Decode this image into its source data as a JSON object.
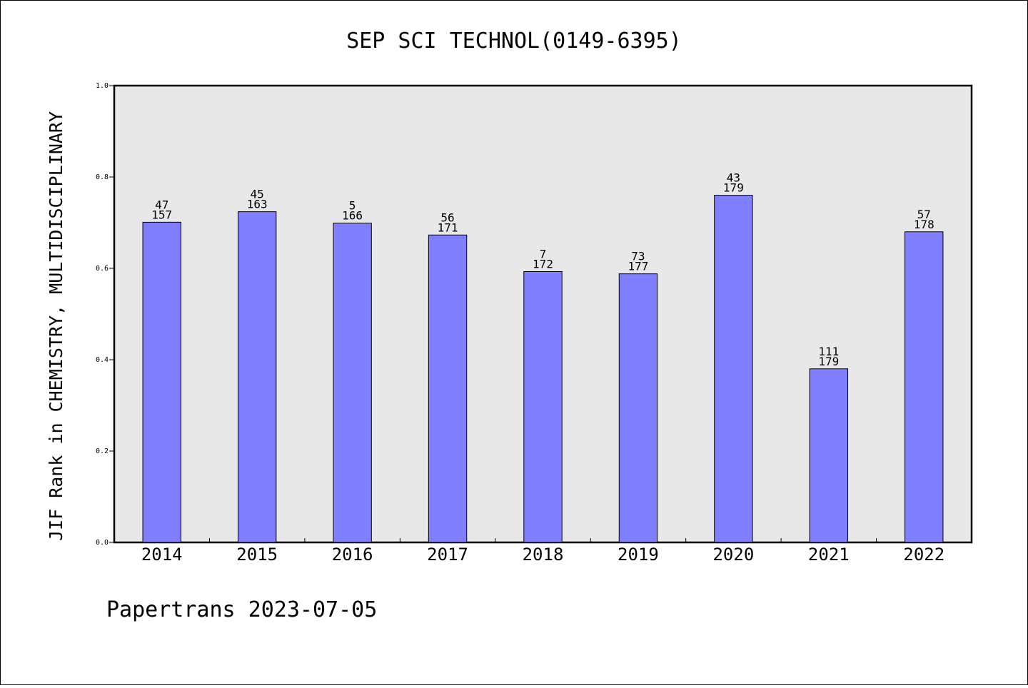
{
  "chart_data": {
    "type": "bar",
    "title": "SEP SCI TECHNOL(0149-6395)",
    "xlabel": "",
    "ylabel": "JIF Rank in CHEMISTRY, MULTIDISCIPLINARY",
    "ylim": [
      0,
      1.0
    ],
    "yticks": [
      "0.0",
      "0.2",
      "0.4",
      "0.6",
      "0.8",
      "1.0"
    ],
    "grid": false,
    "categories": [
      "2014",
      "2015",
      "2016",
      "2017",
      "2018",
      "2019",
      "2020",
      "2021",
      "2022"
    ],
    "values": [
      0.701,
      0.724,
      0.699,
      0.673,
      0.593,
      0.588,
      0.76,
      0.38,
      0.68
    ],
    "labels": [
      {
        "rank": "47",
        "total": "157"
      },
      {
        "rank": "45",
        "total": "163"
      },
      {
        "rank": "5",
        "total": "166"
      },
      {
        "rank": "56",
        "total": "171"
      },
      {
        "rank": "7",
        "total": "172"
      },
      {
        "rank": "73",
        "total": "177"
      },
      {
        "rank": "43",
        "total": "179"
      },
      {
        "rank": "111",
        "total": "179"
      },
      {
        "rank": "57",
        "total": "178"
      }
    ],
    "colors": {
      "bar": "#8080ff",
      "plot_bg": "#e8e8e8"
    }
  },
  "footer": "Papertrans 2023-07-05"
}
